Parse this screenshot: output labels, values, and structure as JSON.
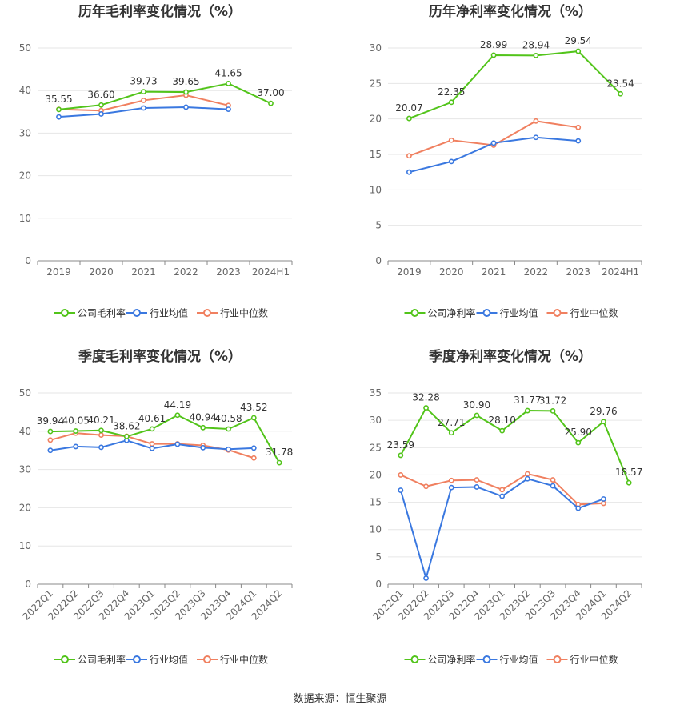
{
  "source": "数据来源：恒生聚源",
  "colors": {
    "company": "#52c41a",
    "industry_avg": "#3a78e0",
    "industry_median": "#f08060"
  },
  "chart_data": [
    {
      "type": "line",
      "title": "历年毛利率变化情况（%）",
      "categories": [
        "2019",
        "2020",
        "2021",
        "2022",
        "2023",
        "2024H1"
      ],
      "ylim": [
        0,
        50
      ],
      "yticks": [
        0,
        10,
        20,
        30,
        40,
        50
      ],
      "grid": true,
      "legend_position": "bottom",
      "rotate_x_labels": false,
      "series": [
        {
          "name": "公司毛利率",
          "values": [
            35.55,
            36.6,
            39.73,
            39.65,
            41.65,
            37.0
          ],
          "labels": [
            "35.55",
            "36.60",
            "39.73",
            "39.65",
            "41.65",
            "37.00"
          ]
        },
        {
          "name": "行业均值",
          "values": [
            33.8,
            34.5,
            35.9,
            36.1,
            35.6,
            null
          ]
        },
        {
          "name": "行业中位数",
          "values": [
            35.6,
            35.3,
            37.7,
            38.9,
            36.5,
            null
          ]
        }
      ]
    },
    {
      "type": "line",
      "title": "历年净利率变化情况（%）",
      "categories": [
        "2019",
        "2020",
        "2021",
        "2022",
        "2023",
        "2024H1"
      ],
      "ylim": [
        0,
        30
      ],
      "yticks": [
        0,
        5,
        10,
        15,
        20,
        25,
        30
      ],
      "grid": true,
      "legend_position": "bottom",
      "rotate_x_labels": false,
      "series": [
        {
          "name": "公司净利率",
          "values": [
            20.07,
            22.35,
            28.99,
            28.94,
            29.54,
            23.54
          ],
          "labels": [
            "20.07",
            "22.35",
            "28.99",
            "28.94",
            "29.54",
            "23.54"
          ]
        },
        {
          "name": "行业均值",
          "values": [
            12.5,
            14.0,
            16.6,
            17.4,
            16.9,
            null
          ]
        },
        {
          "name": "行业中位数",
          "values": [
            14.8,
            17.0,
            16.3,
            19.7,
            18.8,
            null
          ]
        }
      ]
    },
    {
      "type": "line",
      "title": "季度毛利率变化情况（%）",
      "categories": [
        "2022Q1",
        "2022Q2",
        "2022Q3",
        "2022Q4",
        "2023Q1",
        "2023Q2",
        "2023Q3",
        "2023Q4",
        "2024Q1",
        "2024Q2"
      ],
      "ylim": [
        0,
        50
      ],
      "yticks": [
        0,
        10,
        20,
        30,
        40,
        50
      ],
      "grid": true,
      "legend_position": "bottom",
      "rotate_x_labels": true,
      "series": [
        {
          "name": "公司毛利率",
          "values": [
            39.94,
            40.05,
            40.21,
            38.62,
            40.61,
            44.19,
            40.94,
            40.58,
            43.52,
            31.78
          ],
          "labels": [
            "39.94",
            "40.05",
            "40.21",
            "38.62",
            "40.61",
            "44.19",
            "40.94",
            "40.58",
            "43.52",
            "31.78"
          ]
        },
        {
          "name": "行业均值",
          "values": [
            35.0,
            36.0,
            35.8,
            37.6,
            35.5,
            36.6,
            35.7,
            35.3,
            35.6,
            null
          ]
        },
        {
          "name": "行业中位数",
          "values": [
            37.7,
            39.5,
            39.0,
            38.7,
            36.7,
            36.7,
            36.3,
            35.1,
            33.0,
            null
          ]
        }
      ]
    },
    {
      "type": "line",
      "title": "季度净利率变化情况（%）",
      "categories": [
        "2022Q1",
        "2022Q2",
        "2022Q3",
        "2022Q4",
        "2023Q1",
        "2023Q2",
        "2023Q3",
        "2023Q4",
        "2024Q1",
        "2024Q2"
      ],
      "ylim": [
        0,
        35
      ],
      "yticks": [
        0,
        5,
        10,
        15,
        20,
        25,
        30,
        35
      ],
      "grid": true,
      "legend_position": "bottom",
      "rotate_x_labels": true,
      "series": [
        {
          "name": "公司净利率",
          "values": [
            23.59,
            32.28,
            27.71,
            30.9,
            28.1,
            31.77,
            31.72,
            25.9,
            29.76,
            18.57
          ],
          "labels": [
            "23.59",
            "32.28",
            "27.71",
            "30.90",
            "28.10",
            "31.77",
            "31.72",
            "25.90",
            "29.76",
            "18.57"
          ]
        },
        {
          "name": "行业均值",
          "values": [
            17.2,
            1.1,
            17.7,
            17.8,
            16.1,
            19.3,
            18.0,
            13.9,
            15.6,
            null
          ]
        },
        {
          "name": "行业中位数",
          "values": [
            20.0,
            17.9,
            19.0,
            19.1,
            17.3,
            20.2,
            19.1,
            14.6,
            14.8,
            null
          ]
        }
      ]
    }
  ]
}
